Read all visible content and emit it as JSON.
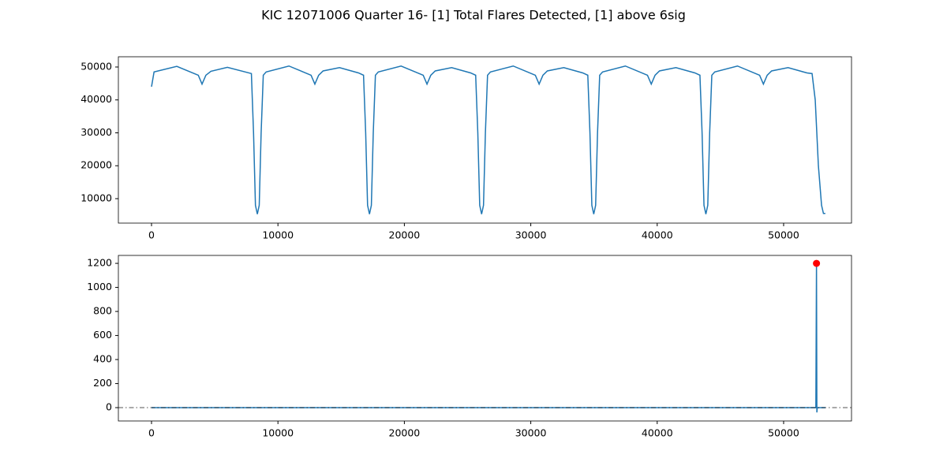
{
  "title": "KIC 12071006 Quarter 16- [1] Total Flares Detected, [1] above 6sig",
  "chart_data": [
    {
      "type": "line",
      "x": [
        0,
        200,
        2000,
        3700,
        3995,
        4300,
        4700,
        6000,
        7900,
        8070,
        8220,
        8370,
        8520,
        8670,
        8840,
        9070,
        10870,
        12620,
        12920,
        13220,
        13570,
        14870,
        16370,
        16770,
        16940,
        17090,
        17240,
        17390,
        17540,
        17710,
        17940,
        19740,
        21490,
        21790,
        22090,
        22440,
        23740,
        25240,
        25640,
        25810,
        25960,
        26110,
        26260,
        26410,
        26580,
        26810,
        28610,
        30360,
        30660,
        30960,
        31310,
        32610,
        34110,
        34510,
        34680,
        34830,
        34980,
        35130,
        35280,
        35450,
        35680,
        37480,
        39230,
        39530,
        39830,
        40180,
        41480,
        42980,
        43380,
        43550,
        43700,
        43850,
        44000,
        44150,
        44320,
        44550,
        46350,
        48100,
        48400,
        48700,
        49050,
        50350,
        51850,
        52250,
        52500,
        52750,
        53000,
        53150,
        53300
      ],
      "series": [
        {
          "color": "#1f77b4",
          "values": [
            44000,
            48500,
            50200,
            47500,
            44800,
            47500,
            48700,
            49900,
            48000,
            30000,
            8000,
            5300,
            8000,
            30000,
            47500,
            48500,
            50300,
            47500,
            44800,
            47500,
            48800,
            49800,
            48200,
            47500,
            30000,
            8000,
            5300,
            8000,
            30000,
            47500,
            48500,
            50300,
            47500,
            44800,
            47500,
            48800,
            49800,
            48200,
            47500,
            30000,
            8000,
            5300,
            8000,
            30000,
            47500,
            48500,
            50300,
            47500,
            44800,
            47500,
            48800,
            49800,
            48200,
            47500,
            30000,
            8000,
            5300,
            8000,
            30000,
            47500,
            48500,
            50300,
            47500,
            44800,
            47500,
            48800,
            49800,
            48200,
            47500,
            30000,
            8000,
            5300,
            8000,
            30000,
            47500,
            48500,
            50300,
            47500,
            44800,
            47500,
            48800,
            49800,
            48200,
            48000,
            40000,
            20000,
            8000,
            5500,
            5500
          ]
        }
      ],
      "xlim": [
        -2622,
        55370
      ],
      "ylim": [
        2575,
        53110
      ],
      "xticks": [
        0,
        10000,
        20000,
        30000,
        40000,
        50000
      ],
      "yticks": [
        10000,
        20000,
        30000,
        40000,
        50000
      ]
    },
    {
      "type": "line",
      "x": [
        0,
        52550,
        52600,
        52630,
        52660,
        53300
      ],
      "series": [
        {
          "color": "#1f77b4",
          "values": [
            0,
            0,
            1200,
            -40,
            0,
            0
          ]
        }
      ],
      "markers": {
        "x": [
          52600
        ],
        "values": [
          1200
        ],
        "color": "#ff0000"
      },
      "hline": 0,
      "xlim": [
        -2622,
        55370
      ],
      "ylim": [
        -111,
        1266
      ],
      "xticks": [
        0,
        10000,
        20000,
        30000,
        40000,
        50000
      ],
      "yticks": [
        0,
        200,
        400,
        600,
        800,
        1000,
        1200
      ]
    }
  ]
}
